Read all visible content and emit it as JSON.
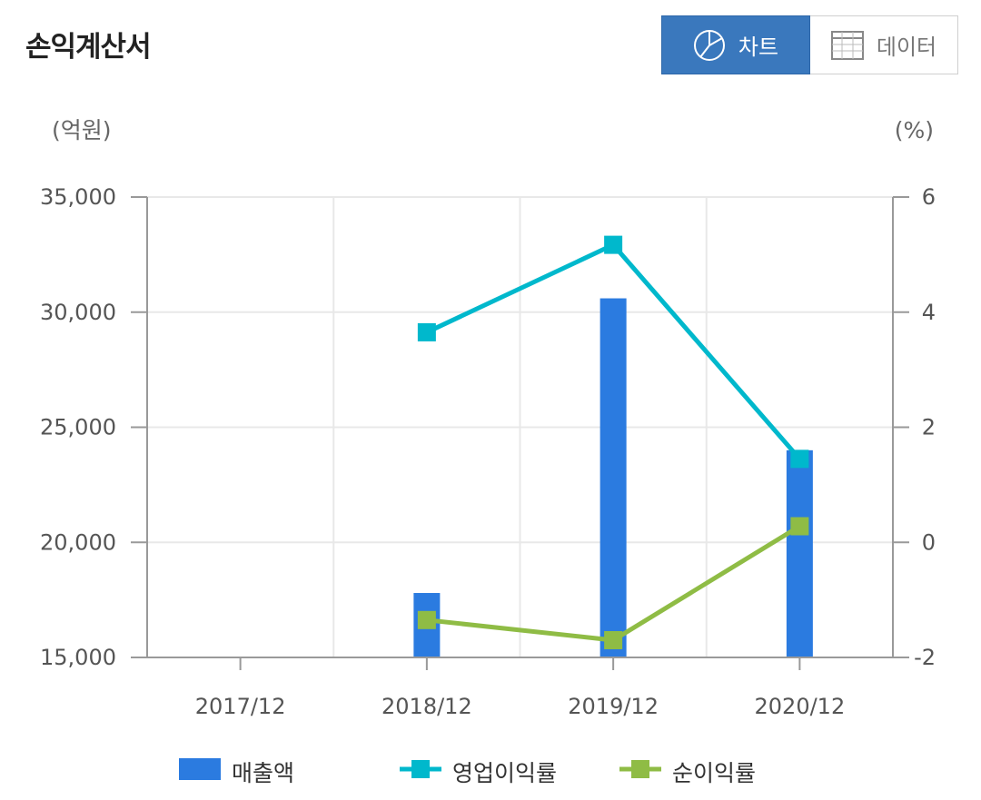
{
  "page": {
    "title": "손익계산서"
  },
  "toggle": {
    "chart_label": "차트",
    "data_label": "데이터",
    "active": "chart"
  },
  "colors": {
    "bar": "#2b7be0",
    "operating": "#00b8cc",
    "net": "#8fbc45",
    "accent": "#3a78bd"
  },
  "chart_data": {
    "type": "bar",
    "categories": [
      "2017/12",
      "2018/12",
      "2019/12",
      "2020/12"
    ],
    "left_axis": {
      "unit": "(억원)",
      "ylim": [
        15000,
        35000
      ],
      "ticks": [
        15000,
        20000,
        25000,
        30000,
        35000
      ],
      "tick_labels": [
        "15,000",
        "20,000",
        "25,000",
        "30,000",
        "35,000"
      ]
    },
    "right_axis": {
      "unit": "(%)",
      "ylim": [
        -2,
        6
      ],
      "ticks": [
        -2,
        0,
        2,
        4,
        6
      ],
      "tick_labels": [
        "-2",
        "0",
        "2",
        "4",
        "6"
      ]
    },
    "series": [
      {
        "name": "매출액",
        "type": "bar",
        "axis": "left",
        "values": [
          null,
          17800,
          30600,
          24000
        ]
      },
      {
        "name": "영업이익률",
        "type": "line",
        "axis": "right",
        "values": [
          null,
          3.65,
          5.17,
          1.45
        ]
      },
      {
        "name": "순이익률",
        "type": "line",
        "axis": "right",
        "values": [
          null,
          -1.35,
          -1.7,
          0.28
        ]
      }
    ],
    "grid": true,
    "legend": "bottom"
  }
}
